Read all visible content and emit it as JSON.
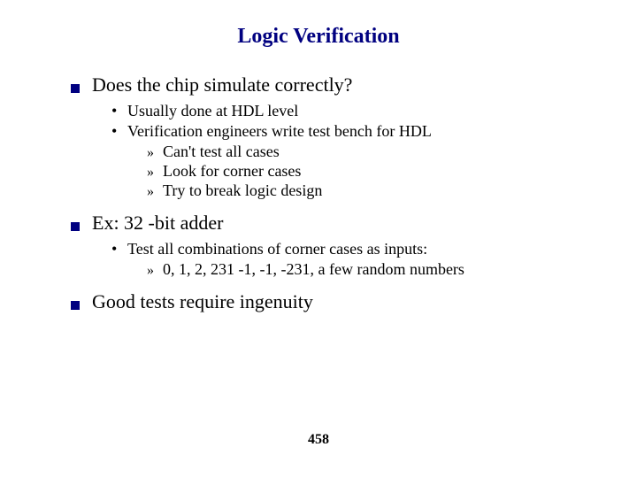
{
  "title": "Logic Verification",
  "title_color": "#000080",
  "bullet_color": "#000080",
  "text_color": "#000000",
  "page_number": "458",
  "items": [
    {
      "text": "Does the chip simulate correctly?",
      "sub": [
        {
          "text": "Usually done at HDL level",
          "sub": []
        },
        {
          "text": "Verification engineers write test bench for HDL",
          "sub": [
            {
              "text": "Can't test all cases"
            },
            {
              "text": "Look for corner cases"
            },
            {
              "text": "Try to break logic design"
            }
          ]
        }
      ]
    },
    {
      "text": "Ex: 32 -bit adder",
      "sub": [
        {
          "text": "Test all combinations of corner cases as inputs:",
          "sub": [
            {
              "text": "0, 1, 2, 231 -1, -1, -231, a few random numbers"
            }
          ]
        }
      ]
    },
    {
      "text": "Good tests require ingenuity",
      "sub": []
    }
  ]
}
